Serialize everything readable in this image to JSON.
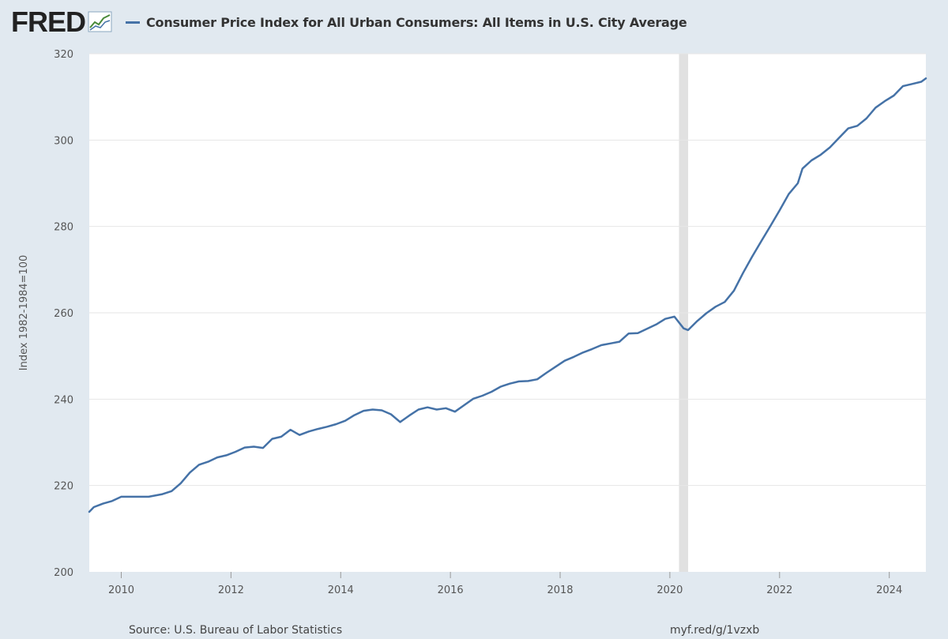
{
  "header": {
    "logo_text": "FRED",
    "series_title": "Consumer Price Index for All Urban Consumers: All Items in U.S. City Average"
  },
  "colors": {
    "series": "#4572a7",
    "recession": "#e1e1e1",
    "plot_background": "#ffffff",
    "page_background": "#e1e9f0",
    "gridline": "#e6e6e6"
  },
  "footer": {
    "source": "Source: U.S. Bureau of Labor Statistics",
    "url": "myf.red/g/1vzxb"
  },
  "chart_data": {
    "type": "line",
    "title": "Consumer Price Index for All Urban Consumers: All Items in U.S. City Average",
    "ylabel": "Index 1982-1984=100",
    "xlabel": "",
    "ylim": [
      200,
      320
    ],
    "xlim": [
      2009.417,
      2024.667
    ],
    "y_ticks": [
      "200",
      "220",
      "240",
      "260",
      "280",
      "300",
      "320"
    ],
    "x_ticks": [
      "2010",
      "2012",
      "2014",
      "2016",
      "2018",
      "2020",
      "2022",
      "2024"
    ],
    "grid": "horizontal",
    "legend": "top-left",
    "recession_shading": [
      [
        2020.167,
        2020.333
      ]
    ],
    "series": [
      {
        "name": "Consumer Price Index for All Urban Consumers: All Items in U.S. City Average",
        "x": [
          2009.417,
          2009.5,
          2009.667,
          2009.833,
          2010.0,
          2010.25,
          2010.5,
          2010.75,
          2010.917,
          2011.083,
          2011.25,
          2011.417,
          2011.583,
          2011.75,
          2011.917,
          2012.083,
          2012.25,
          2012.417,
          2012.583,
          2012.75,
          2012.917,
          2013.083,
          2013.25,
          2013.417,
          2013.583,
          2013.75,
          2013.917,
          2014.083,
          2014.25,
          2014.417,
          2014.583,
          2014.75,
          2014.917,
          2015.083,
          2015.25,
          2015.417,
          2015.583,
          2015.75,
          2015.917,
          2016.083,
          2016.25,
          2016.417,
          2016.583,
          2016.75,
          2016.917,
          2017.083,
          2017.25,
          2017.417,
          2017.583,
          2017.75,
          2017.917,
          2018.083,
          2018.25,
          2018.417,
          2018.583,
          2018.75,
          2018.917,
          2019.083,
          2019.25,
          2019.417,
          2019.583,
          2019.75,
          2019.917,
          2020.083,
          2020.25,
          2020.333,
          2020.5,
          2020.667,
          2020.833,
          2021.0,
          2021.167,
          2021.333,
          2021.5,
          2021.667,
          2021.833,
          2022.0,
          2022.167,
          2022.333,
          2022.417,
          2022.583,
          2022.75,
          2022.917,
          2023.083,
          2023.25,
          2023.417,
          2023.583,
          2023.75,
          2023.917,
          2024.083,
          2024.25,
          2024.417,
          2024.583,
          2024.667
        ],
        "values": [
          213.9,
          215.0,
          215.8,
          216.4,
          217.4,
          217.4,
          217.4,
          218.0,
          218.7,
          220.5,
          223.0,
          224.8,
          225.5,
          226.5,
          227.0,
          227.8,
          228.8,
          229.0,
          228.7,
          230.8,
          231.3,
          232.9,
          231.7,
          232.5,
          233.1,
          233.6,
          234.2,
          235.0,
          236.3,
          237.3,
          237.6,
          237.4,
          236.5,
          234.7,
          236.2,
          237.6,
          238.1,
          237.6,
          237.9,
          237.1,
          238.6,
          240.1,
          240.8,
          241.7,
          242.9,
          243.6,
          244.1,
          244.2,
          244.6,
          246.1,
          247.5,
          248.9,
          249.8,
          250.8,
          251.6,
          252.5,
          252.9,
          253.3,
          255.2,
          255.3,
          256.3,
          257.3,
          258.6,
          259.1,
          256.4,
          256.0,
          258.1,
          259.9,
          261.4,
          262.5,
          265.1,
          269.2,
          273.0,
          276.6,
          280.1,
          283.7,
          287.5,
          290.0,
          293.4,
          295.3,
          296.6,
          298.3,
          300.5,
          302.7,
          303.3,
          305.0,
          307.5,
          309.0,
          310.3,
          312.5,
          313.0,
          313.5,
          314.3
        ]
      }
    ]
  }
}
